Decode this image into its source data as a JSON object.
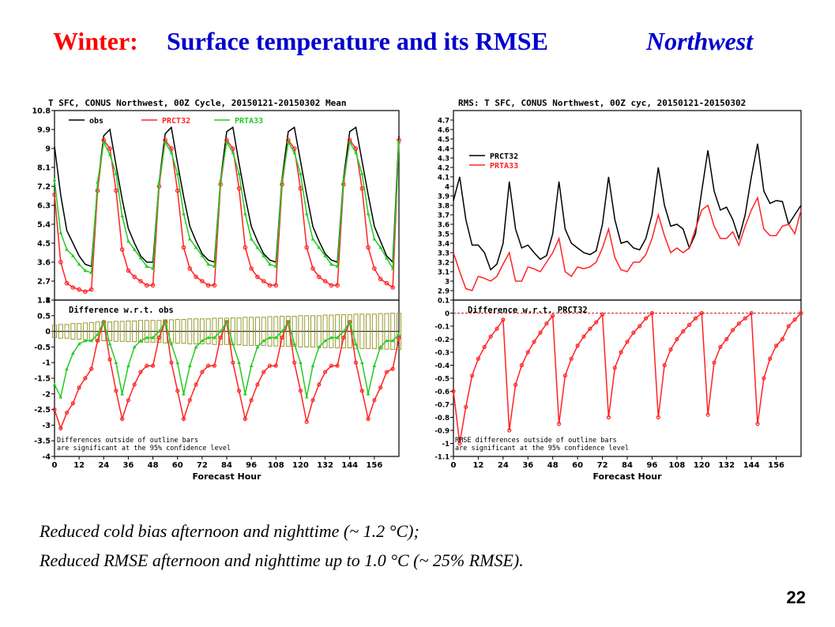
{
  "slide": {
    "title_winter": "Winter:",
    "title_main": "Surface temperature  and its RMSE",
    "title_region": "Northwest",
    "caption_line1": "Reduced cold bias afternoon and nighttime (~ 1.2 °C);",
    "caption_line2": "Reduced RMSE afternoon and nighttime up to 1.0 °C  (~ 25% RMSE).",
    "page_number": "22"
  },
  "colors": {
    "obs": "#000000",
    "prct32": "#ff2222",
    "prta33": "#22cc22",
    "bars": "#999933"
  },
  "chart_data": [
    {
      "type": "line",
      "title": "T SFC, CONUS Northwest, 00Z Cycle, 20150121-20150302 Mean",
      "xlabel": "Forecast Hour",
      "x_ticks": [
        "0",
        "12",
        "24",
        "36",
        "48",
        "60",
        "72",
        "84",
        "96",
        "108",
        "120",
        "132",
        "144",
        "156"
      ],
      "x": [
        0,
        3,
        6,
        9,
        12,
        15,
        18,
        21,
        24,
        27,
        30,
        33,
        36,
        39,
        42,
        45,
        48,
        51,
        54,
        57,
        60,
        63,
        66,
        69,
        72,
        75,
        78,
        81,
        84,
        87,
        90,
        93,
        96,
        99,
        102,
        105,
        108,
        111,
        114,
        117,
        120,
        123,
        126,
        129,
        132,
        135,
        138,
        141,
        144,
        147,
        150,
        153,
        156,
        159,
        162,
        165,
        168
      ],
      "top": {
        "ylim": [
          1.8,
          10.8
        ],
        "y_ticks": [
          "1.8",
          "2.7",
          "3.6",
          "4.5",
          "5.4",
          "6.3",
          "7.2",
          "8.1",
          "9",
          "9.9",
          "10.8"
        ],
        "legend": [
          "obs",
          "PRCT32",
          "PRTA33"
        ],
        "series": [
          {
            "name": "obs",
            "color": "#000000",
            "values": [
              9.1,
              6.8,
              5.1,
              4.5,
              3.9,
              3.5,
              3.4,
              7.2,
              9.6,
              9.9,
              8.2,
              6.6,
              5.2,
              4.5,
              3.9,
              3.6,
              3.6,
              7.4,
              9.7,
              10.0,
              8.3,
              6.7,
              5.3,
              4.6,
              4.0,
              3.7,
              3.6,
              7.5,
              9.8,
              10.0,
              8.3,
              6.7,
              5.3,
              4.6,
              4.0,
              3.7,
              3.6,
              7.6,
              9.8,
              10.0,
              8.4,
              6.8,
              5.3,
              4.6,
              4.0,
              3.7,
              3.6,
              7.6,
              9.8,
              10.0,
              8.4,
              6.8,
              5.3,
              4.6,
              3.9,
              3.6,
              9.6
            ]
          },
          {
            "name": "PRCT32",
            "color": "#ff2222",
            "values": [
              6.8,
              3.6,
              2.6,
              2.4,
              2.3,
              2.2,
              2.3,
              7.0,
              9.4,
              9.0,
              7.0,
              4.2,
              3.2,
              2.9,
              2.7,
              2.5,
              2.5,
              7.2,
              9.4,
              9.0,
              7.0,
              4.3,
              3.3,
              2.9,
              2.7,
              2.5,
              2.5,
              7.3,
              9.4,
              9.0,
              7.1,
              4.3,
              3.3,
              2.9,
              2.7,
              2.5,
              2.5,
              7.3,
              9.4,
              9.0,
              7.1,
              4.3,
              3.3,
              2.9,
              2.7,
              2.5,
              2.5,
              7.3,
              9.4,
              9.0,
              7.1,
              4.3,
              3.3,
              2.8,
              2.6,
              2.4,
              9.4
            ]
          },
          {
            "name": "PRTA33",
            "color": "#22cc22",
            "values": [
              7.5,
              5.0,
              4.2,
              3.9,
              3.5,
              3.2,
              3.1,
              7.4,
              9.3,
              8.7,
              7.8,
              5.8,
              4.6,
              4.2,
              3.8,
              3.4,
              3.3,
              7.4,
              9.3,
              8.8,
              7.8,
              5.9,
              4.7,
              4.3,
              3.9,
              3.5,
              3.4,
              7.5,
              9.3,
              8.8,
              7.8,
              5.9,
              4.7,
              4.3,
              3.9,
              3.5,
              3.4,
              7.5,
              9.3,
              8.8,
              7.8,
              5.9,
              4.7,
              4.3,
              3.9,
              3.5,
              3.4,
              7.5,
              9.3,
              8.8,
              7.8,
              5.9,
              4.7,
              4.3,
              3.8,
              3.3,
              9.3
            ]
          }
        ]
      },
      "bottom": {
        "title": "Difference w.r.t. obs",
        "ylim": [
          -4,
          1
        ],
        "y_ticks": [
          "-4",
          "-3.5",
          "-3",
          "-2.5",
          "-2",
          "-1.5",
          "-1",
          "-0.5",
          "0",
          "0.5",
          "1"
        ],
        "note": [
          "Differences outside of outline bars",
          "are significant at the 95% confidence level"
        ],
        "series": [
          {
            "name": "PRCT32",
            "color": "#ff2222",
            "values": [
              -2.5,
              -3.1,
              -2.6,
              -2.3,
              -1.8,
              -1.5,
              -1.2,
              -0.3,
              0.3,
              -0.9,
              -1.9,
              -2.8,
              -2.2,
              -1.7,
              -1.3,
              -1.1,
              -1.1,
              -0.2,
              0.3,
              -1.0,
              -1.9,
              -2.8,
              -2.2,
              -1.7,
              -1.3,
              -1.1,
              -1.1,
              -0.2,
              0.3,
              -1.0,
              -1.9,
              -2.8,
              -2.2,
              -1.7,
              -1.3,
              -1.1,
              -1.1,
              -0.2,
              0.3,
              -1.0,
              -1.9,
              -2.9,
              -2.2,
              -1.7,
              -1.3,
              -1.1,
              -1.1,
              -0.2,
              0.3,
              -1.0,
              -1.9,
              -2.8,
              -2.2,
              -1.8,
              -1.3,
              -1.2,
              -0.2
            ]
          },
          {
            "name": "PRTA33",
            "color": "#22cc22",
            "values": [
              -1.7,
              -2.1,
              -1.2,
              -0.7,
              -0.4,
              -0.3,
              -0.3,
              -0.1,
              0.3,
              -0.4,
              -1.0,
              -2.0,
              -1.1,
              -0.5,
              -0.3,
              -0.2,
              -0.2,
              0.0,
              0.3,
              -0.4,
              -1.0,
              -2.0,
              -1.1,
              -0.5,
              -0.3,
              -0.2,
              -0.2,
              0.0,
              0.3,
              -0.4,
              -1.0,
              -2.0,
              -1.1,
              -0.5,
              -0.3,
              -0.2,
              -0.2,
              0.0,
              0.3,
              -0.4,
              -1.0,
              -2.1,
              -1.1,
              -0.5,
              -0.3,
              -0.2,
              -0.2,
              0.0,
              0.3,
              -0.4,
              -1.0,
              -2.0,
              -1.1,
              -0.5,
              -0.3,
              -0.3,
              -0.1
            ]
          },
          {
            "name": "significance",
            "color": "#999933",
            "values": [
              0.2,
              0.22,
              0.22,
              0.25,
              0.25,
              0.27,
              0.28,
              0.3,
              0.3,
              0.3,
              0.32,
              0.32,
              0.33,
              0.33,
              0.35,
              0.35,
              0.35,
              0.35,
              0.37,
              0.37,
              0.38,
              0.38,
              0.4,
              0.4,
              0.4,
              0.4,
              0.42,
              0.42,
              0.42,
              0.43,
              0.43,
              0.45,
              0.45,
              0.45,
              0.45,
              0.47,
              0.47,
              0.48,
              0.48,
              0.48,
              0.5,
              0.5,
              0.5,
              0.5,
              0.52,
              0.52,
              0.53,
              0.53,
              0.53,
              0.55,
              0.55,
              0.55,
              0.55,
              0.57,
              0.57,
              0.58,
              0.58
            ]
          }
        ]
      }
    },
    {
      "type": "line",
      "title": "RMS: T SFC, CONUS Northwest, 00Z cyc, 20150121-20150302",
      "xlabel": "Forecast Hour",
      "x_ticks": [
        "0",
        "12",
        "24",
        "36",
        "48",
        "60",
        "72",
        "84",
        "96",
        "108",
        "120",
        "132",
        "144",
        "156"
      ],
      "x": [
        0,
        3,
        6,
        9,
        12,
        15,
        18,
        21,
        24,
        27,
        30,
        33,
        36,
        39,
        42,
        45,
        48,
        51,
        54,
        57,
        60,
        63,
        66,
        69,
        72,
        75,
        78,
        81,
        84,
        87,
        90,
        93,
        96,
        99,
        102,
        105,
        108,
        111,
        114,
        117,
        120,
        123,
        126,
        129,
        132,
        135,
        138,
        141,
        144,
        147,
        150,
        153,
        156,
        159,
        162,
        165,
        168
      ],
      "top": {
        "ylim": [
          2.8,
          4.8
        ],
        "y_ticks": [
          "2.9",
          "3",
          "3.1",
          "3.2",
          "3.3",
          "3.4",
          "3.5",
          "3.6",
          "3.7",
          "3.8",
          "3.9",
          "4",
          "4.1",
          "4.2",
          "4.3",
          "4.4",
          "4.5",
          "4.6",
          "4.7"
        ],
        "legend": [
          "PRCT32",
          "PRTA33"
        ],
        "series": [
          {
            "name": "PRCT32",
            "color": "#000000",
            "values": [
              3.85,
              4.1,
              3.65,
              3.38,
              3.38,
              3.3,
              3.12,
              3.18,
              3.4,
              4.05,
              3.55,
              3.35,
              3.38,
              3.3,
              3.23,
              3.27,
              3.5,
              4.05,
              3.55,
              3.4,
              3.35,
              3.3,
              3.28,
              3.32,
              3.6,
              4.1,
              3.65,
              3.4,
              3.42,
              3.35,
              3.33,
              3.45,
              3.7,
              4.2,
              3.8,
              3.58,
              3.6,
              3.55,
              3.35,
              3.5,
              3.95,
              4.38,
              3.95,
              3.75,
              3.78,
              3.65,
              3.45,
              3.7,
              4.1,
              4.45,
              3.95,
              3.82,
              3.85,
              3.84,
              3.6,
              3.7,
              3.8
            ]
          },
          {
            "name": "PRTA33",
            "color": "#ff2222",
            "values": [
              3.3,
              3.1,
              2.92,
              2.9,
              3.05,
              3.03,
              3.0,
              3.05,
              3.18,
              3.3,
              3.0,
              3.0,
              3.15,
              3.13,
              3.1,
              3.2,
              3.3,
              3.45,
              3.1,
              3.05,
              3.15,
              3.13,
              3.15,
              3.2,
              3.35,
              3.55,
              3.25,
              3.12,
              3.1,
              3.2,
              3.2,
              3.28,
              3.45,
              3.7,
              3.48,
              3.3,
              3.35,
              3.3,
              3.35,
              3.55,
              3.75,
              3.8,
              3.58,
              3.45,
              3.45,
              3.52,
              3.38,
              3.58,
              3.75,
              3.88,
              3.55,
              3.48,
              3.48,
              3.58,
              3.6,
              3.5,
              3.75
            ]
          }
        ]
      },
      "bottom": {
        "title": "Difference w.r.t. PRCT32",
        "ylim": [
          -1.1,
          0.1
        ],
        "y_ticks": [
          "-1.1",
          "-1",
          "-0.9",
          "-0.8",
          "-0.7",
          "-0.6",
          "-0.5",
          "-0.4",
          "-0.3",
          "-0.2",
          "-0.1",
          "0",
          "0.1"
        ],
        "note": [
          "RMSE differences outside of outline bars",
          "are significant at the 95% confidence level"
        ],
        "series": [
          {
            "name": "PRTA33",
            "color": "#ff2222",
            "values": [
              -0.6,
              -1.0,
              -0.72,
              -0.48,
              -0.35,
              -0.26,
              -0.18,
              -0.12,
              -0.05,
              -0.9,
              -0.55,
              -0.4,
              -0.3,
              -0.22,
              -0.15,
              -0.08,
              -0.02,
              -0.85,
              -0.48,
              -0.35,
              -0.25,
              -0.18,
              -0.12,
              -0.07,
              -0.01,
              -0.8,
              -0.42,
              -0.3,
              -0.22,
              -0.15,
              -0.1,
              -0.04,
              0.0,
              -0.8,
              -0.4,
              -0.28,
              -0.2,
              -0.14,
              -0.09,
              -0.04,
              0.0,
              -0.78,
              -0.38,
              -0.26,
              -0.2,
              -0.13,
              -0.08,
              -0.04,
              0.0,
              -0.85,
              -0.5,
              -0.35,
              -0.25,
              -0.2,
              -0.1,
              -0.05,
              0.0
            ]
          }
        ]
      }
    }
  ]
}
